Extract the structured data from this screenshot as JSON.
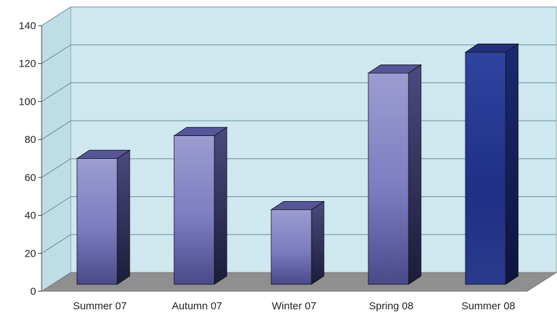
{
  "chart_data": {
    "type": "bar",
    "title": "",
    "xlabel": "",
    "ylabel": "",
    "categories": [
      "Summer 07",
      "Autumn 07",
      "Winter 07",
      "Spring 08",
      "Summer 08"
    ],
    "values": [
      70,
      82,
      43,
      115,
      126
    ],
    "ylim": [
      0,
      140
    ],
    "yticks": [
      "0",
      "20",
      "40",
      "60",
      "80",
      "100",
      "120",
      "140"
    ],
    "grid": true,
    "legend": "none",
    "three_d": true,
    "colors": {
      "wall": "#cfe8ef",
      "floor": "#8f8f8f",
      "grid": "#6a8a95",
      "bar_front": "#8d8dc6",
      "bar_side": "#3a3a6e",
      "bar_top": "#55559a",
      "last_bar_front": "#2d3f99",
      "last_bar_side": "#141f5c",
      "last_bar_top": "#22307a"
    }
  }
}
